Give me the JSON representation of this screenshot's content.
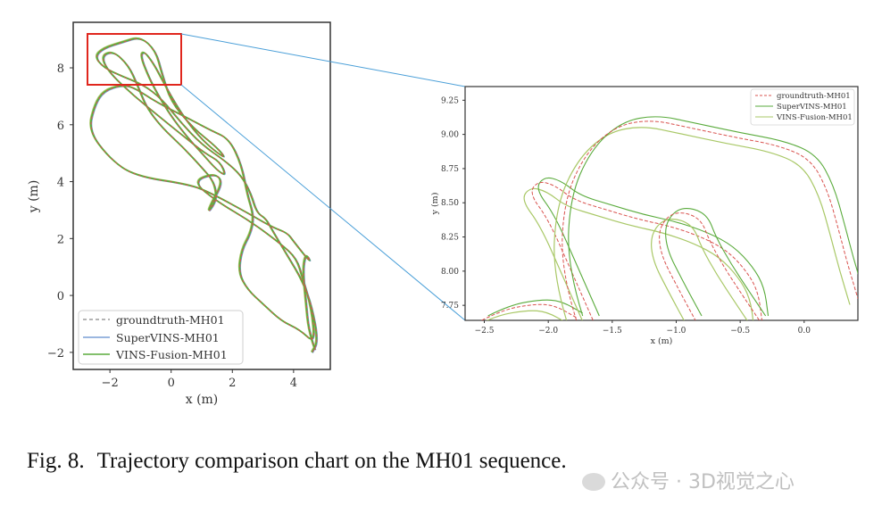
{
  "chart_data": [
    {
      "type": "line",
      "xlabel": "x (m)",
      "ylabel": "y (m)",
      "xlim": [
        -3.2,
        5.2
      ],
      "ylim": [
        -2.6,
        9.6
      ],
      "xticks": [
        "-2",
        "0",
        "2",
        "4"
      ],
      "yticks": [
        "-2",
        "0",
        "2",
        "4",
        "6",
        "8"
      ],
      "legend_position": "lower-left",
      "series": [
        {
          "name": "groundtruth-MH01",
          "style": "dashed",
          "color": "#d9534f"
        },
        {
          "name": "SuperVINS-MH01",
          "style": "solid",
          "color": "#7a9fd6"
        },
        {
          "name": "VINS-Fusion-MH01",
          "style": "solid",
          "color": "#5aab3c"
        }
      ],
      "trajectory": [
        [
          4.7,
          -1.9
        ],
        [
          4.5,
          -1.3
        ],
        [
          4.4,
          -0.2
        ],
        [
          4.3,
          0.9
        ],
        [
          4.4,
          1.5
        ],
        [
          4.6,
          1.1
        ],
        [
          4.0,
          1.9
        ],
        [
          3.8,
          2.2
        ],
        [
          3.3,
          2.4
        ],
        [
          2.5,
          2.9
        ],
        [
          1.3,
          3.6
        ],
        [
          0.6,
          3.9
        ],
        [
          -1.2,
          4.2
        ],
        [
          -2.0,
          4.8
        ],
        [
          -2.7,
          5.8
        ],
        [
          -2.5,
          6.7
        ],
        [
          -2.2,
          7.2
        ],
        [
          -1.6,
          7.4
        ],
        [
          -1.2,
          7.3
        ],
        [
          -0.5,
          6.8
        ],
        [
          0.6,
          6.2
        ],
        [
          1.3,
          5.8
        ],
        [
          1.9,
          5.5
        ],
        [
          2.3,
          4.6
        ],
        [
          2.5,
          3.5
        ],
        [
          2.7,
          2.8
        ],
        [
          2.6,
          2.2
        ],
        [
          2.3,
          1.6
        ],
        [
          2.2,
          0.8
        ],
        [
          2.5,
          0.2
        ],
        [
          3.0,
          -0.3
        ],
        [
          3.6,
          -0.9
        ],
        [
          4.2,
          -1.2
        ],
        [
          4.7,
          -1.7
        ],
        [
          4.6,
          -0.5
        ],
        [
          4.3,
          0.6
        ],
        [
          4.1,
          1.3
        ],
        [
          3.6,
          1.8
        ],
        [
          2.6,
          2.6
        ],
        [
          1.5,
          3.3
        ],
        [
          0.7,
          4.0
        ],
        [
          1.4,
          4.3
        ],
        [
          1.7,
          4.0
        ],
        [
          1.3,
          3.2
        ],
        [
          1.2,
          2.9
        ],
        [
          1.5,
          3.4
        ],
        [
          1.4,
          4.0
        ],
        [
          1.0,
          4.5
        ],
        [
          0.4,
          5.2
        ],
        [
          -0.3,
          5.9
        ],
        [
          -0.8,
          6.6
        ],
        [
          -1.1,
          7.4
        ],
        [
          -1.4,
          8.1
        ],
        [
          -1.9,
          8.6
        ],
        [
          -2.3,
          8.4
        ],
        [
          -2.0,
          7.8
        ],
        [
          -1.2,
          7.0
        ],
        [
          -0.4,
          6.3
        ],
        [
          0.4,
          5.6
        ],
        [
          1.1,
          5.0
        ],
        [
          1.6,
          4.7
        ],
        [
          1.8,
          4.2
        ],
        [
          1.5,
          4.4
        ],
        [
          1.0,
          5.0
        ],
        [
          0.5,
          5.6
        ],
        [
          0.0,
          6.3
        ],
        [
          -0.4,
          7.0
        ],
        [
          -0.7,
          7.6
        ],
        [
          -1.0,
          8.4
        ],
        [
          -0.9,
          8.6
        ],
        [
          -0.6,
          8.2
        ],
        [
          -0.3,
          7.6
        ],
        [
          0.0,
          7.0
        ],
        [
          0.4,
          6.3
        ],
        [
          0.9,
          5.6
        ],
        [
          1.4,
          5.1
        ],
        [
          1.8,
          4.8
        ],
        [
          1.5,
          5.2
        ],
        [
          0.7,
          5.9
        ],
        [
          0.0,
          6.8
        ],
        [
          -0.3,
          7.8
        ],
        [
          -0.5,
          8.6
        ],
        [
          -1.0,
          9.1
        ],
        [
          -1.6,
          8.9
        ],
        [
          -2.2,
          8.7
        ],
        [
          -2.5,
          8.4
        ],
        [
          -2.2,
          8.0
        ],
        [
          -1.6,
          7.7
        ],
        [
          -0.9,
          7.4
        ],
        [
          -0.3,
          6.9
        ],
        [
          0.3,
          6.1
        ],
        [
          1.0,
          5.3
        ],
        [
          1.8,
          4.7
        ],
        [
          2.3,
          4.2
        ],
        [
          2.6,
          3.6
        ],
        [
          2.8,
          2.9
        ],
        [
          3.1,
          2.7
        ],
        [
          3.3,
          2.3
        ],
        [
          3.8,
          1.4
        ],
        [
          4.3,
          0.5
        ],
        [
          4.6,
          -0.4
        ],
        [
          4.8,
          -1.6
        ],
        [
          4.6,
          -2.0
        ]
      ],
      "inset": {
        "xlim": [
          -2.65,
          0.42
        ],
        "ylim": [
          7.64,
          9.35
        ],
        "xticks": [
          "-2.5",
          "-2.0",
          "-1.5",
          "-1.0",
          "-0.5",
          "0.0"
        ],
        "yticks": [
          "7.75",
          "8.00",
          "8.25",
          "8.50",
          "8.75",
          "9.00",
          "9.25"
        ],
        "xlabel": "x (m)",
        "ylabel": "y (m)",
        "legend_position": "top-right",
        "gt_paths": [
          [
            [
              -2.52,
              7.64
            ],
            [
              -2.35,
              7.72
            ],
            [
              -2.1,
              7.76
            ],
            [
              -1.95,
              7.75
            ],
            [
              -1.78,
              7.66
            ]
          ],
          [
            [
              -1.65,
              7.64
            ],
            [
              -1.82,
              8.0
            ],
            [
              -2.0,
              8.38
            ],
            [
              -2.15,
              8.57
            ],
            [
              -2.08,
              8.66
            ],
            [
              -1.95,
              8.63
            ],
            [
              -1.8,
              8.52
            ],
            [
              -1.55,
              8.45
            ],
            [
              -1.3,
              8.38
            ],
            [
              -1.05,
              8.33
            ],
            [
              -0.8,
              8.25
            ],
            [
              -0.6,
              8.15
            ],
            [
              -0.45,
              8.0
            ],
            [
              -0.36,
              7.85
            ],
            [
              -0.33,
              7.64
            ]
          ],
          [
            [
              -0.35,
              7.64
            ],
            [
              -0.48,
              7.82
            ],
            [
              -0.62,
              8.02
            ],
            [
              -0.74,
              8.22
            ],
            [
              -0.8,
              8.37
            ],
            [
              -0.92,
              8.43
            ],
            [
              -1.05,
              8.42
            ],
            [
              -1.14,
              8.3
            ],
            [
              -1.12,
              8.12
            ],
            [
              -1.0,
              7.9
            ],
            [
              -0.85,
              7.64
            ]
          ],
          [
            [
              -1.78,
              7.64
            ],
            [
              -1.9,
              8.0
            ],
            [
              -1.88,
              8.5
            ],
            [
              -1.72,
              8.85
            ],
            [
              -1.48,
              9.06
            ],
            [
              -1.2,
              9.11
            ],
            [
              -0.9,
              9.05
            ],
            [
              -0.55,
              8.98
            ],
            [
              -0.2,
              8.92
            ],
            [
              0.05,
              8.82
            ],
            [
              0.18,
              8.6
            ],
            [
              0.27,
              8.3
            ],
            [
              0.34,
              8.05
            ],
            [
              0.42,
              7.8
            ]
          ]
        ]
      }
    }
  ],
  "caption": {
    "number": "Fig. 8.",
    "text": "Trajectory comparison chart on the MH01 sequence."
  },
  "watermark": "公众号 · 3D视觉之心",
  "colors": {
    "highlight_box": "#e0261d",
    "connector": "#4a9fd8",
    "gt": "#d9534f",
    "supervins": "#7a9fd6",
    "vinsfusion": "#5aab3c",
    "vinsfusion_light": "#a9c867"
  }
}
